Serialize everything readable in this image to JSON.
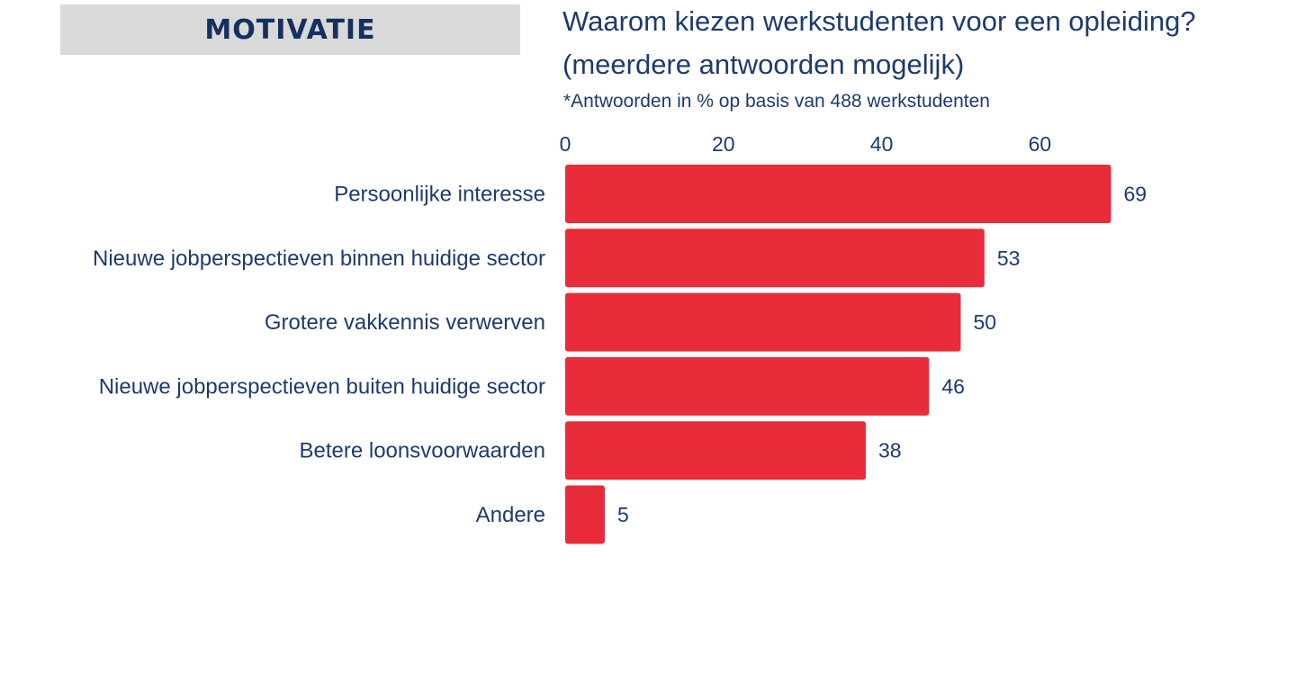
{
  "section": {
    "label": "MOTIVATIE"
  },
  "header": {
    "title": "Waarom kiezen werkstudenten voor een opleiding? (meerdere antwoorden mogelijk)",
    "subtitle": "*Antwoorden in % op basis van 488 werkstudenten"
  },
  "colors": {
    "bar": "#e92c39",
    "text": "#1c3b6e",
    "section_bg": "#d9d9d9"
  },
  "chart_data": {
    "type": "bar",
    "orientation": "horizontal",
    "title": "Waarom kiezen werkstudenten voor een opleiding? (meerdere antwoorden mogelijk)",
    "subtitle": "*Antwoorden in % op basis van 488 werkstudenten",
    "categories": [
      "Persoonlijke interesse",
      "Nieuwe jobperspectieven binnen huidige sector",
      "Grotere vakkennis verwerven",
      "Nieuwe jobperspectieven buiten huidige sector",
      "Betere loonsvoorwaarden",
      "Andere"
    ],
    "values": [
      69,
      53,
      50,
      46,
      38,
      5
    ],
    "xticks": [
      0,
      20,
      40,
      60
    ],
    "xlim": [
      0,
      69
    ],
    "axis_position": "top",
    "grid": false,
    "legend": "none",
    "data_labels": true
  }
}
